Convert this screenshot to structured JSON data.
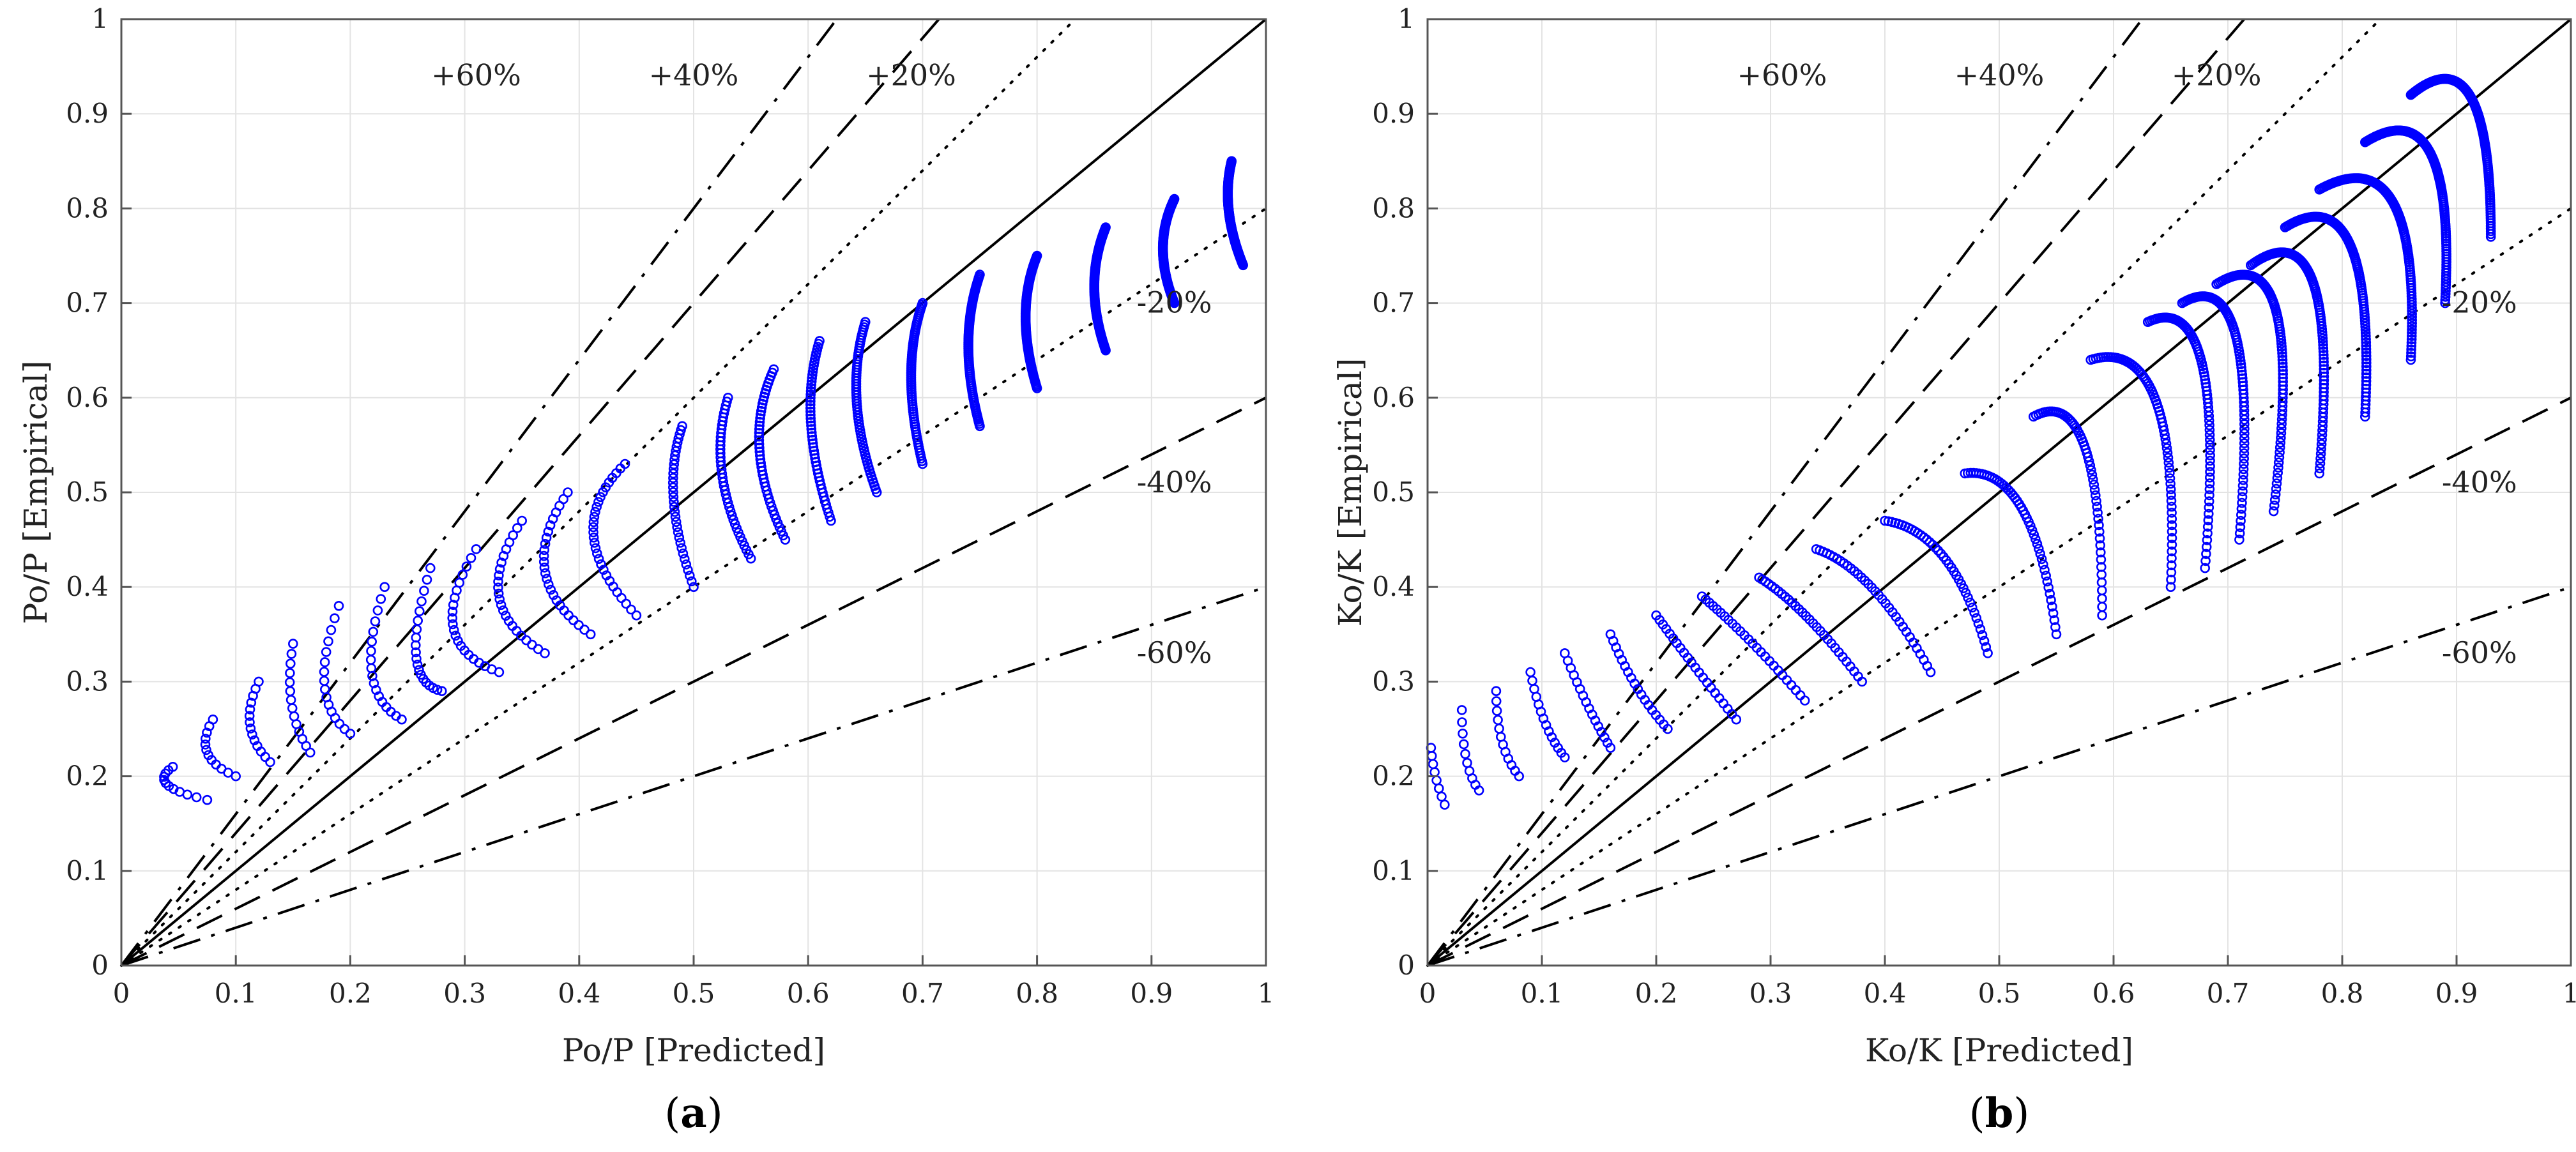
{
  "figure": {
    "colors": {
      "points": "#0000ff",
      "lines": "#000000",
      "grid": "#e3e3e3",
      "axis": "#555555",
      "background": "#ffffff"
    }
  },
  "chart_data": [
    {
      "type": "scatter",
      "panel": "a",
      "caption": {
        "open": "(",
        "letter": "a",
        "close": ")"
      },
      "xlabel": "Po/P [Predicted]",
      "ylabel": "Po/P [Empirical]",
      "xlim": [
        0,
        1
      ],
      "ylim": [
        0,
        1
      ],
      "xticks": [
        "0",
        "0.1",
        "0.2",
        "0.3",
        "0.4",
        "0.5",
        "0.6",
        "0.7",
        "0.8",
        "0.9",
        "1"
      ],
      "yticks": [
        "0",
        "0.1",
        "0.2",
        "0.3",
        "0.4",
        "0.5",
        "0.6",
        "0.7",
        "0.8",
        "0.9",
        "1"
      ],
      "grid": true,
      "reference_lines": [
        {
          "slope": 1.0,
          "style": "solid",
          "label": ""
        },
        {
          "slope": 1.2,
          "style": "dotted",
          "label": "+20%",
          "label_at": [
            0.69,
            0.93
          ]
        },
        {
          "slope": 1.4,
          "style": "dashed",
          "label": "+40%",
          "label_at": [
            0.5,
            0.93
          ]
        },
        {
          "slope": 1.6,
          "style": "dashdot",
          "label": "+60%",
          "label_at": [
            0.31,
            0.93
          ]
        },
        {
          "slope": 0.8,
          "style": "dotted",
          "label": "-20%",
          "label_at": [
            0.92,
            0.69
          ]
        },
        {
          "slope": 0.6,
          "style": "dashed",
          "label": "-40%",
          "label_at": [
            0.92,
            0.5
          ]
        },
        {
          "slope": 0.4,
          "style": "dashdot",
          "label": "-60%",
          "label_at": [
            0.92,
            0.32
          ]
        }
      ],
      "curves": [
        {
          "start": [
            0.045,
            0.21
          ],
          "mid": [
            0.02,
            0.19
          ],
          "end": [
            0.075,
            0.175
          ],
          "n": 12
        },
        {
          "start": [
            0.08,
            0.26
          ],
          "mid": [
            0.06,
            0.22
          ],
          "end": [
            0.1,
            0.2
          ],
          "n": 12
        },
        {
          "start": [
            0.12,
            0.3
          ],
          "mid": [
            0.1,
            0.25
          ],
          "end": [
            0.13,
            0.215
          ],
          "n": 14
        },
        {
          "start": [
            0.15,
            0.34
          ],
          "mid": [
            0.14,
            0.27
          ],
          "end": [
            0.165,
            0.225
          ],
          "n": 14
        },
        {
          "start": [
            0.19,
            0.38
          ],
          "mid": [
            0.16,
            0.28
          ],
          "end": [
            0.2,
            0.245
          ],
          "n": 16
        },
        {
          "start": [
            0.23,
            0.4
          ],
          "mid": [
            0.2,
            0.29
          ],
          "end": [
            0.245,
            0.26
          ],
          "n": 18
        },
        {
          "start": [
            0.27,
            0.42
          ],
          "mid": [
            0.24,
            0.3
          ],
          "end": [
            0.28,
            0.29
          ],
          "n": 20
        },
        {
          "start": [
            0.31,
            0.44
          ],
          "mid": [
            0.26,
            0.34
          ],
          "end": [
            0.33,
            0.31
          ],
          "n": 22
        },
        {
          "start": [
            0.35,
            0.47
          ],
          "mid": [
            0.3,
            0.38
          ],
          "end": [
            0.37,
            0.33
          ],
          "n": 24
        },
        {
          "start": [
            0.39,
            0.5
          ],
          "mid": [
            0.34,
            0.41
          ],
          "end": [
            0.41,
            0.35
          ],
          "n": 26
        },
        {
          "start": [
            0.44,
            0.53
          ],
          "mid": [
            0.38,
            0.46
          ],
          "end": [
            0.45,
            0.37
          ],
          "n": 30
        },
        {
          "start": [
            0.49,
            0.57
          ],
          "mid": [
            0.47,
            0.5
          ],
          "end": [
            0.5,
            0.4
          ],
          "n": 34
        },
        {
          "start": [
            0.53,
            0.6
          ],
          "mid": [
            0.51,
            0.52
          ],
          "end": [
            0.55,
            0.43
          ],
          "n": 40
        },
        {
          "start": [
            0.57,
            0.63
          ],
          "mid": [
            0.54,
            0.55
          ],
          "end": [
            0.58,
            0.45
          ],
          "n": 46
        },
        {
          "start": [
            0.61,
            0.66
          ],
          "mid": [
            0.59,
            0.58
          ],
          "end": [
            0.62,
            0.47
          ],
          "n": 52
        },
        {
          "start": [
            0.65,
            0.68
          ],
          "mid": [
            0.63,
            0.6
          ],
          "end": [
            0.66,
            0.5
          ],
          "n": 60
        },
        {
          "start": [
            0.7,
            0.7
          ],
          "mid": [
            0.68,
            0.63
          ],
          "end": [
            0.7,
            0.53
          ],
          "n": 70
        },
        {
          "start": [
            0.75,
            0.73
          ],
          "mid": [
            0.73,
            0.66
          ],
          "end": [
            0.75,
            0.57
          ],
          "n": 80
        },
        {
          "start": [
            0.8,
            0.75
          ],
          "mid": [
            0.78,
            0.69
          ],
          "end": [
            0.8,
            0.61
          ],
          "n": 90
        },
        {
          "start": [
            0.86,
            0.78
          ],
          "mid": [
            0.84,
            0.72
          ],
          "end": [
            0.86,
            0.65
          ],
          "n": 110
        },
        {
          "start": [
            0.92,
            0.81
          ],
          "mid": [
            0.9,
            0.76
          ],
          "end": [
            0.92,
            0.7
          ],
          "n": 130
        },
        {
          "start": [
            0.97,
            0.85
          ],
          "mid": [
            0.96,
            0.8
          ],
          "end": [
            0.98,
            0.74
          ],
          "n": 150
        }
      ]
    },
    {
      "type": "scatter",
      "panel": "b",
      "caption": {
        "open": "(",
        "letter": "b",
        "close": ")"
      },
      "xlabel": "Ko/K [Predicted]",
      "ylabel": "Ko/K [Empirical]",
      "xlim": [
        0,
        1
      ],
      "ylim": [
        0,
        1
      ],
      "xticks": [
        "0",
        "0.1",
        "0.2",
        "0.3",
        "0.4",
        "0.5",
        "0.6",
        "0.7",
        "0.8",
        "0.9",
        "1"
      ],
      "yticks": [
        "0",
        "0.1",
        "0.2",
        "0.3",
        "0.4",
        "0.5",
        "0.6",
        "0.7",
        "0.8",
        "0.9",
        "1"
      ],
      "grid": true,
      "reference_lines": [
        {
          "slope": 1.0,
          "style": "solid",
          "label": ""
        },
        {
          "slope": 1.2,
          "style": "dotted",
          "label": "+20%",
          "label_at": [
            0.69,
            0.93
          ]
        },
        {
          "slope": 1.4,
          "style": "dashed",
          "label": "+40%",
          "label_at": [
            0.5,
            0.93
          ]
        },
        {
          "slope": 1.6,
          "style": "dashdot",
          "label": "+60%",
          "label_at": [
            0.31,
            0.93
          ]
        },
        {
          "slope": 0.8,
          "style": "dotted",
          "label": "-20%",
          "label_at": [
            0.92,
            0.69
          ]
        },
        {
          "slope": 0.6,
          "style": "dashed",
          "label": "-40%",
          "label_at": [
            0.92,
            0.5
          ]
        },
        {
          "slope": 0.4,
          "style": "dashdot",
          "label": "-60%",
          "label_at": [
            0.92,
            0.32
          ]
        }
      ],
      "curves": [
        {
          "start": [
            0.003,
            0.23
          ],
          "mid": [
            0.005,
            0.2
          ],
          "end": [
            0.015,
            0.17
          ],
          "n": 8
        },
        {
          "start": [
            0.03,
            0.27
          ],
          "mid": [
            0.03,
            0.21
          ],
          "end": [
            0.045,
            0.185
          ],
          "n": 10
        },
        {
          "start": [
            0.06,
            0.29
          ],
          "mid": [
            0.06,
            0.23
          ],
          "end": [
            0.08,
            0.2
          ],
          "n": 12
        },
        {
          "start": [
            0.09,
            0.31
          ],
          "mid": [
            0.1,
            0.25
          ],
          "end": [
            0.12,
            0.22
          ],
          "n": 14
        },
        {
          "start": [
            0.12,
            0.33
          ],
          "mid": [
            0.14,
            0.27
          ],
          "end": [
            0.16,
            0.23
          ],
          "n": 16
        },
        {
          "start": [
            0.16,
            0.35
          ],
          "mid": [
            0.18,
            0.29
          ],
          "end": [
            0.21,
            0.25
          ],
          "n": 18
        },
        {
          "start": [
            0.2,
            0.37
          ],
          "mid": [
            0.23,
            0.32
          ],
          "end": [
            0.27,
            0.26
          ],
          "n": 22
        },
        {
          "start": [
            0.24,
            0.39
          ],
          "mid": [
            0.28,
            0.35
          ],
          "end": [
            0.33,
            0.28
          ],
          "n": 26
        },
        {
          "start": [
            0.29,
            0.41
          ],
          "mid": [
            0.33,
            0.38
          ],
          "end": [
            0.38,
            0.3
          ],
          "n": 30
        },
        {
          "start": [
            0.34,
            0.44
          ],
          "mid": [
            0.39,
            0.42
          ],
          "end": [
            0.44,
            0.31
          ],
          "n": 34
        },
        {
          "start": [
            0.4,
            0.47
          ],
          "mid": [
            0.46,
            0.46
          ],
          "end": [
            0.49,
            0.33
          ],
          "n": 40
        },
        {
          "start": [
            0.47,
            0.52
          ],
          "mid": [
            0.53,
            0.53
          ],
          "end": [
            0.55,
            0.35
          ],
          "n": 48
        },
        {
          "start": [
            0.53,
            0.58
          ],
          "mid": [
            0.59,
            0.62
          ],
          "end": [
            0.59,
            0.37
          ],
          "n": 56
        },
        {
          "start": [
            0.58,
            0.64
          ],
          "mid": [
            0.66,
            0.67
          ],
          "end": [
            0.65,
            0.4
          ],
          "n": 70
        },
        {
          "start": [
            0.63,
            0.68
          ],
          "mid": [
            0.7,
            0.72
          ],
          "end": [
            0.68,
            0.42
          ],
          "n": 80
        },
        {
          "start": [
            0.66,
            0.7
          ],
          "mid": [
            0.73,
            0.75
          ],
          "end": [
            0.71,
            0.45
          ],
          "n": 90
        },
        {
          "start": [
            0.69,
            0.72
          ],
          "mid": [
            0.77,
            0.78
          ],
          "end": [
            0.74,
            0.48
          ],
          "n": 100
        },
        {
          "start": [
            0.72,
            0.74
          ],
          "mid": [
            0.8,
            0.81
          ],
          "end": [
            0.78,
            0.52
          ],
          "n": 110
        },
        {
          "start": [
            0.75,
            0.78
          ],
          "mid": [
            0.83,
            0.84
          ],
          "end": [
            0.82,
            0.58
          ],
          "n": 120
        },
        {
          "start": [
            0.78,
            0.82
          ],
          "mid": [
            0.87,
            0.88
          ],
          "end": [
            0.86,
            0.64
          ],
          "n": 130
        },
        {
          "start": [
            0.82,
            0.87
          ],
          "mid": [
            0.9,
            0.93
          ],
          "end": [
            0.89,
            0.7
          ],
          "n": 140
        },
        {
          "start": [
            0.86,
            0.92
          ],
          "mid": [
            0.93,
            0.99
          ],
          "end": [
            0.93,
            0.77
          ],
          "n": 150
        }
      ]
    }
  ]
}
